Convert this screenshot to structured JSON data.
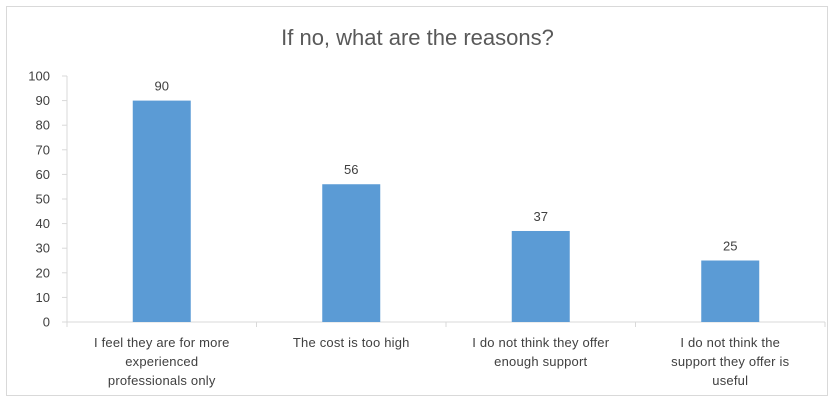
{
  "chart_data": {
    "type": "bar",
    "title": "If no, what are the reasons?",
    "categories": [
      "I feel they are for more experienced professionals only",
      "The cost is too high",
      "I do not think they offer enough support",
      "I do not think the support they offer is useful"
    ],
    "category_lines": [
      [
        "I feel they are for more",
        "experienced",
        "professionals only"
      ],
      [
        "The cost is too high"
      ],
      [
        "I do not think they offer",
        "enough support"
      ],
      [
        "I do not think the",
        "support they offer is",
        "useful"
      ]
    ],
    "values": [
      90,
      56,
      37,
      25
    ],
    "data_labels": [
      "90",
      "56",
      "37",
      "25"
    ],
    "ylim": [
      0,
      100
    ],
    "yticks": [
      0,
      10,
      20,
      30,
      40,
      50,
      60,
      70,
      80,
      90,
      100
    ],
    "ytick_labels": [
      "0",
      "10",
      "20",
      "30",
      "40",
      "50",
      "60",
      "70",
      "80",
      "90",
      "100"
    ],
    "grid": false,
    "legend": "none",
    "colors": {
      "bar": "#5b9bd5",
      "axis": "#d9d9d9",
      "text": "#404040",
      "title": "#595959"
    }
  }
}
